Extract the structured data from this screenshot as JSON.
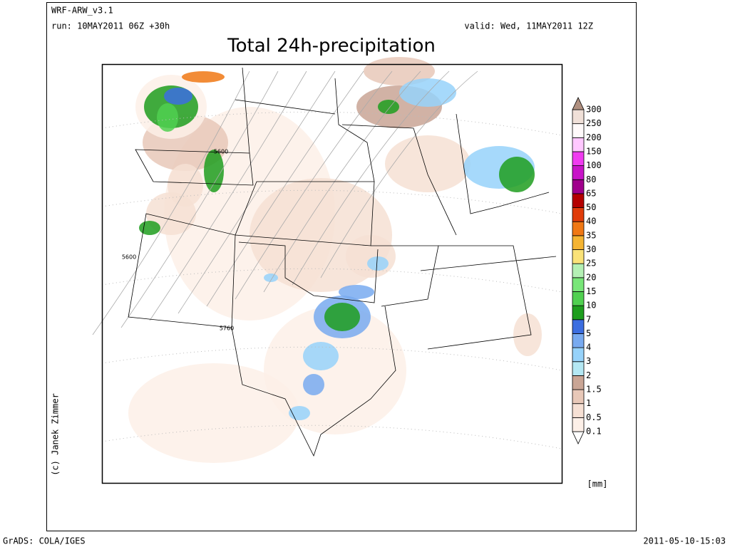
{
  "header": {
    "model": "WRF-ARW_v3.1",
    "run": "run: 10MAY2011 06Z +30h",
    "valid": "valid: Wed, 11MAY2011 12Z",
    "title": "Total 24h-precipitation"
  },
  "credit": "(c) Janek Zimmer",
  "contour_labels": [
    "5600",
    "5600",
    "5760"
  ],
  "colorbar": {
    "levels": [
      0.1,
      0.5,
      1,
      1.5,
      2,
      3,
      4,
      5,
      7,
      10,
      15,
      20,
      25,
      30,
      35,
      40,
      50,
      65,
      80,
      100,
      150,
      200,
      250,
      300
    ],
    "colors": [
      "#ffffff",
      "#fdf0e8",
      "#f6e0d4",
      "#e8c8b8",
      "#c9a595",
      "#b4e8f4",
      "#96d2fa",
      "#78aaf0",
      "#3c6ee0",
      "#1e9e1e",
      "#50d050",
      "#78e678",
      "#b4f0b4",
      "#fae278",
      "#f5b432",
      "#f07814",
      "#e03c0a",
      "#b40000",
      "#a0008c",
      "#c814c8",
      "#f03cf0",
      "#ffc8ff",
      "#fffafa",
      "#f0e0d8",
      "#b09080"
    ],
    "unit": "[mm]"
  },
  "footer": {
    "left": "GrADS: COLA/IGES",
    "right": "2011-05-10-15:03"
  }
}
